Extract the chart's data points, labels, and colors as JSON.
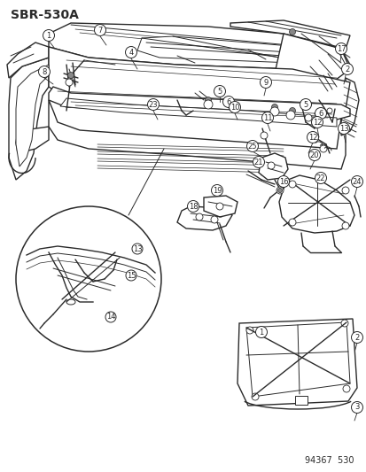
{
  "title": "SBR-530A",
  "footer": "94367  530",
  "bg_color": "#ffffff",
  "line_color": "#2a2a2a",
  "title_fontsize": 10,
  "footer_fontsize": 7
}
